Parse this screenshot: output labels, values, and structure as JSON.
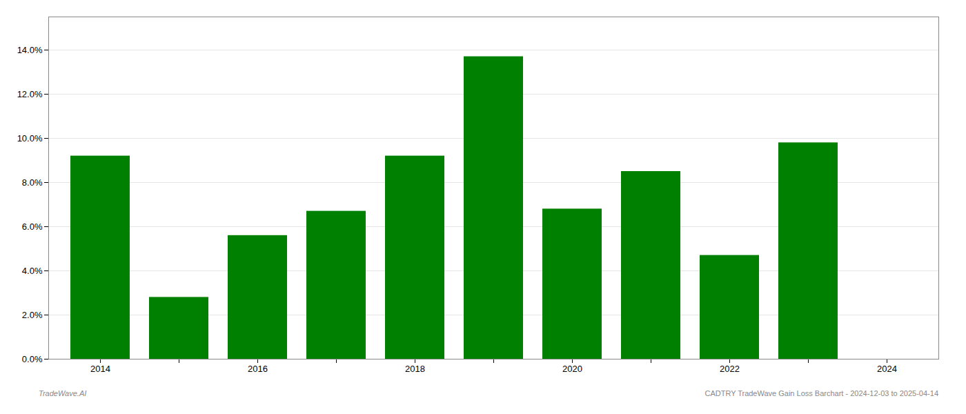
{
  "chart_data": {
    "type": "bar",
    "categories": [
      "2014",
      null,
      "2016",
      null,
      "2018",
      null,
      "2020",
      null,
      "2022",
      null,
      "2024"
    ],
    "values": [
      0.092,
      0.028,
      0.056,
      0.067,
      0.092,
      0.137,
      0.068,
      0.085,
      0.047,
      0.098,
      0.0
    ],
    "color": "#008000",
    "ylim": [
      0,
      0.155
    ],
    "yticks": [
      {
        "value": 0.0,
        "label": "0.0%"
      },
      {
        "value": 0.02,
        "label": "2.0%"
      },
      {
        "value": 0.04,
        "label": "4.0%"
      },
      {
        "value": 0.06,
        "label": "6.0%"
      },
      {
        "value": 0.08,
        "label": "8.0%"
      },
      {
        "value": 0.1,
        "label": "10.0%"
      },
      {
        "value": 0.12,
        "label": "12.0%"
      },
      {
        "value": 0.14,
        "label": "14.0%"
      }
    ],
    "grid": true,
    "annotations": [
      "TradeWave.AI",
      "CADTRY TradeWave Gain Loss Barchart - 2024-12-03 to 2025-04-14"
    ]
  }
}
